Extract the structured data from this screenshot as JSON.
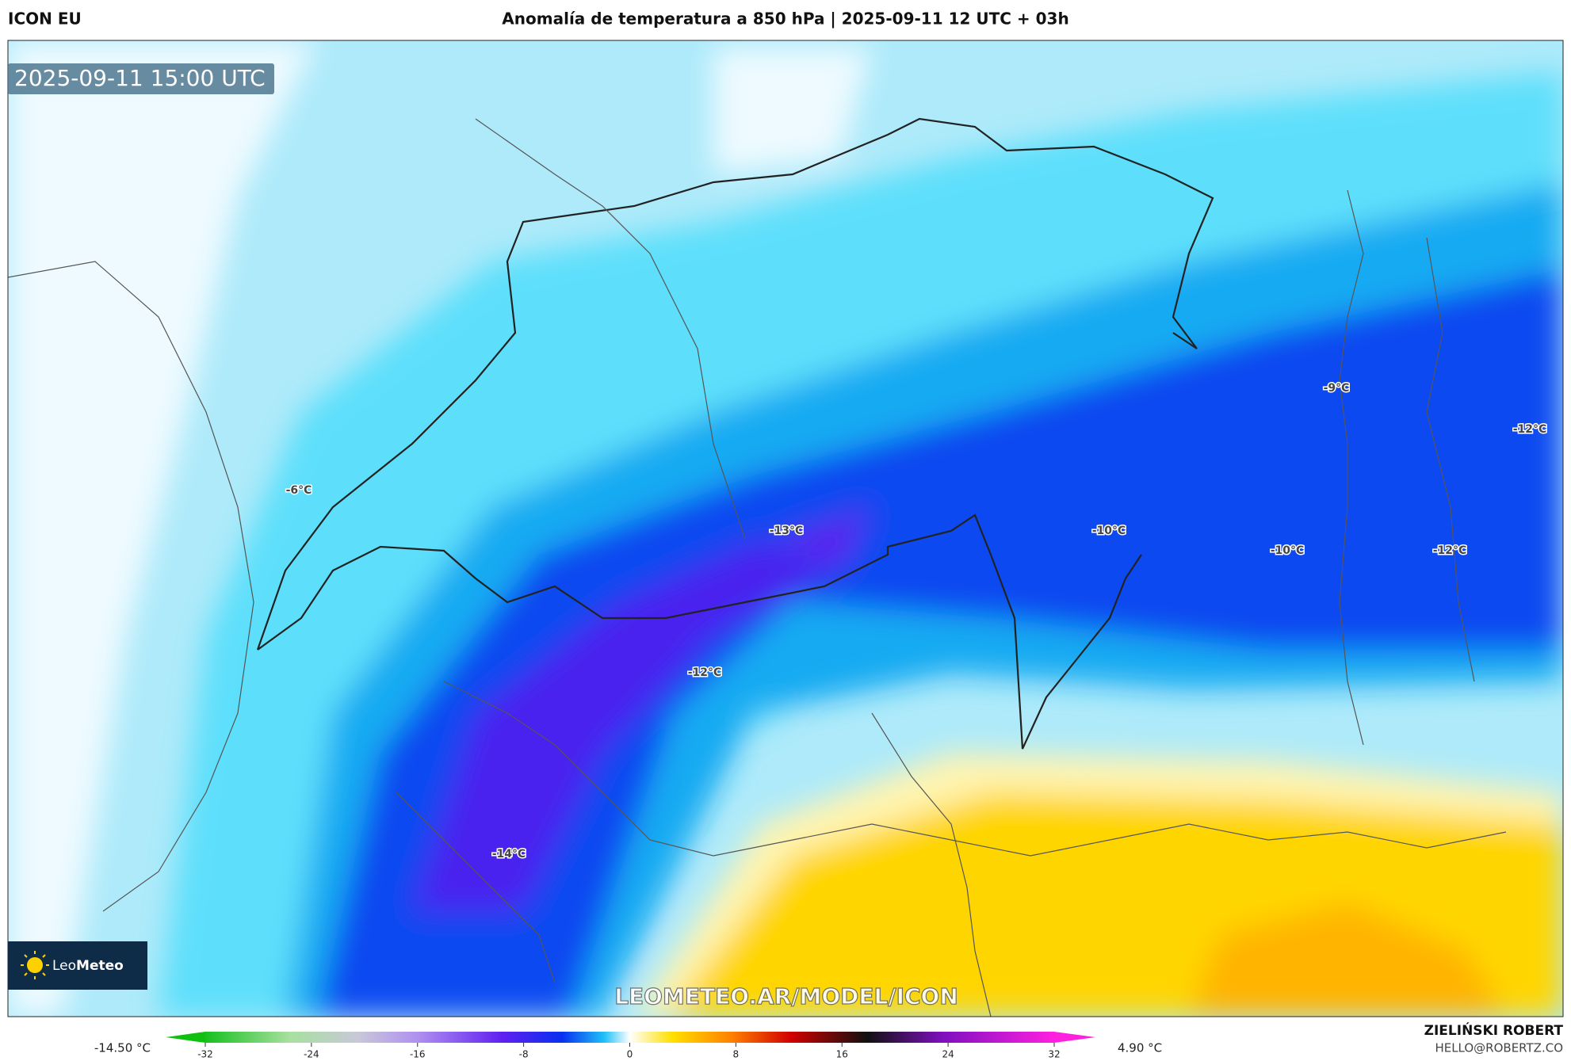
{
  "header": {
    "model": "ICON EU",
    "title": "Anomalía de temperatura a 850 hPa | 2025-09-11 12 UTC + 03h"
  },
  "map": {
    "valid_time": "2025-09-11 15:00 UTC",
    "contour_labels": [
      "-6°C",
      "-13°C",
      "-12°C",
      "-14°C",
      "-10°C",
      "-10°C",
      "-9°C",
      "-12°C",
      "-12°C"
    ],
    "watermark": "LEOMETEO.AR/MODEL/ICON",
    "logo_light": "Leo",
    "logo_bold": "Meteo"
  },
  "colorbar": {
    "min_label": "-14.50 °C",
    "max_label": "4.90 °C",
    "range": [
      -32,
      32
    ],
    "ticks": [
      -32,
      -24,
      -16,
      -8,
      0,
      8,
      16,
      24,
      32
    ]
  },
  "credits": {
    "author": "ZIELIŃSKI ROBERT",
    "contact": "HELLO@ROBERTZ.CO"
  }
}
